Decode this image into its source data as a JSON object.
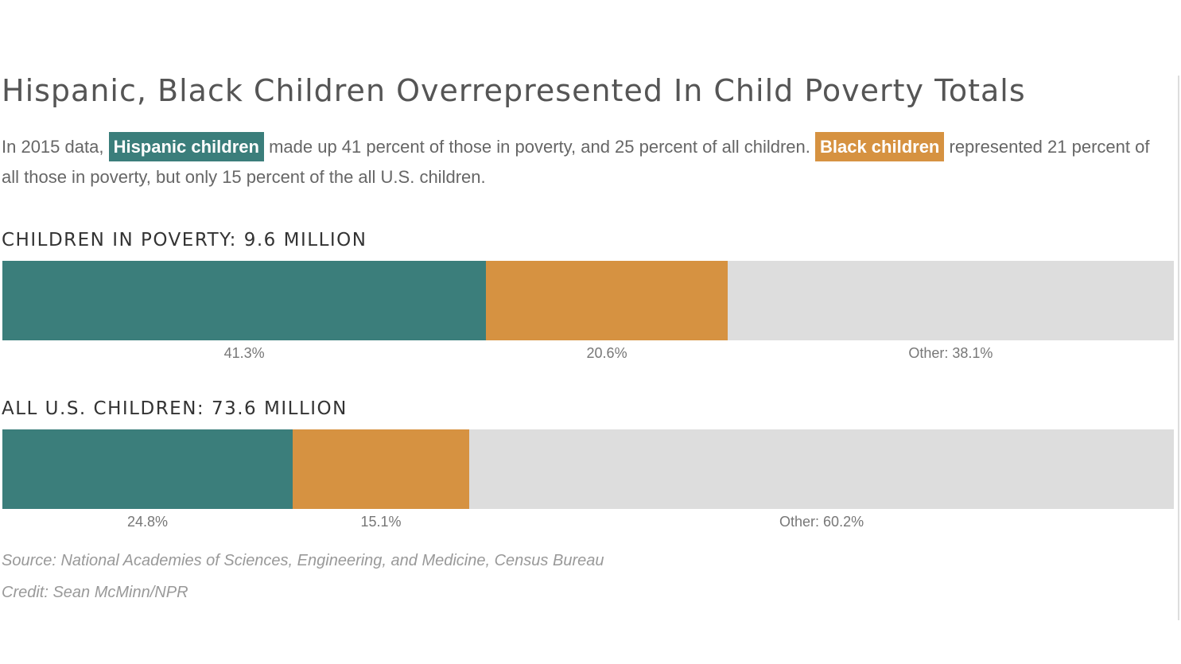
{
  "title": "Hispanic, Black Children Overrepresented In Child Poverty Totals",
  "intro": {
    "part1": "In 2015 data, ",
    "hispanic_label": "Hispanic children",
    "part2": " made up 41 percent of those in poverty, and 25 percent of all children. ",
    "black_label": "Black children",
    "part3": " represented 21 percent of all those in poverty, but only 15 percent of the all U.S. children."
  },
  "colors": {
    "hispanic": "#3b7e7b",
    "black": "#d69241",
    "other": "#dddddd"
  },
  "chart_data": [
    {
      "type": "bar",
      "orientation": "horizontal-stacked",
      "title": "CHILDREN IN POVERTY: 9.6 MILLION",
      "series": [
        {
          "name": "Hispanic children",
          "values": [
            41.3
          ],
          "label": "41.3%"
        },
        {
          "name": "Black children",
          "values": [
            20.6
          ],
          "label": "20.6%"
        },
        {
          "name": "Other",
          "values": [
            38.1
          ],
          "label": "Other: 38.1%"
        }
      ],
      "xlim": [
        0,
        100
      ]
    },
    {
      "type": "bar",
      "orientation": "horizontal-stacked",
      "title": "ALL U.S. CHILDREN: 73.6 MILLION",
      "series": [
        {
          "name": "Hispanic children",
          "values": [
            24.8
          ],
          "label": "24.8%"
        },
        {
          "name": "Black children",
          "values": [
            15.1
          ],
          "label": "15.1%"
        },
        {
          "name": "Other",
          "values": [
            60.2
          ],
          "label": "Other: 60.2%"
        }
      ],
      "xlim": [
        0,
        100
      ]
    }
  ],
  "source": "Source: National Academies of Sciences, Engineering, and Medicine, Census Bureau",
  "credit": "Credit: Sean McMinn/NPR"
}
